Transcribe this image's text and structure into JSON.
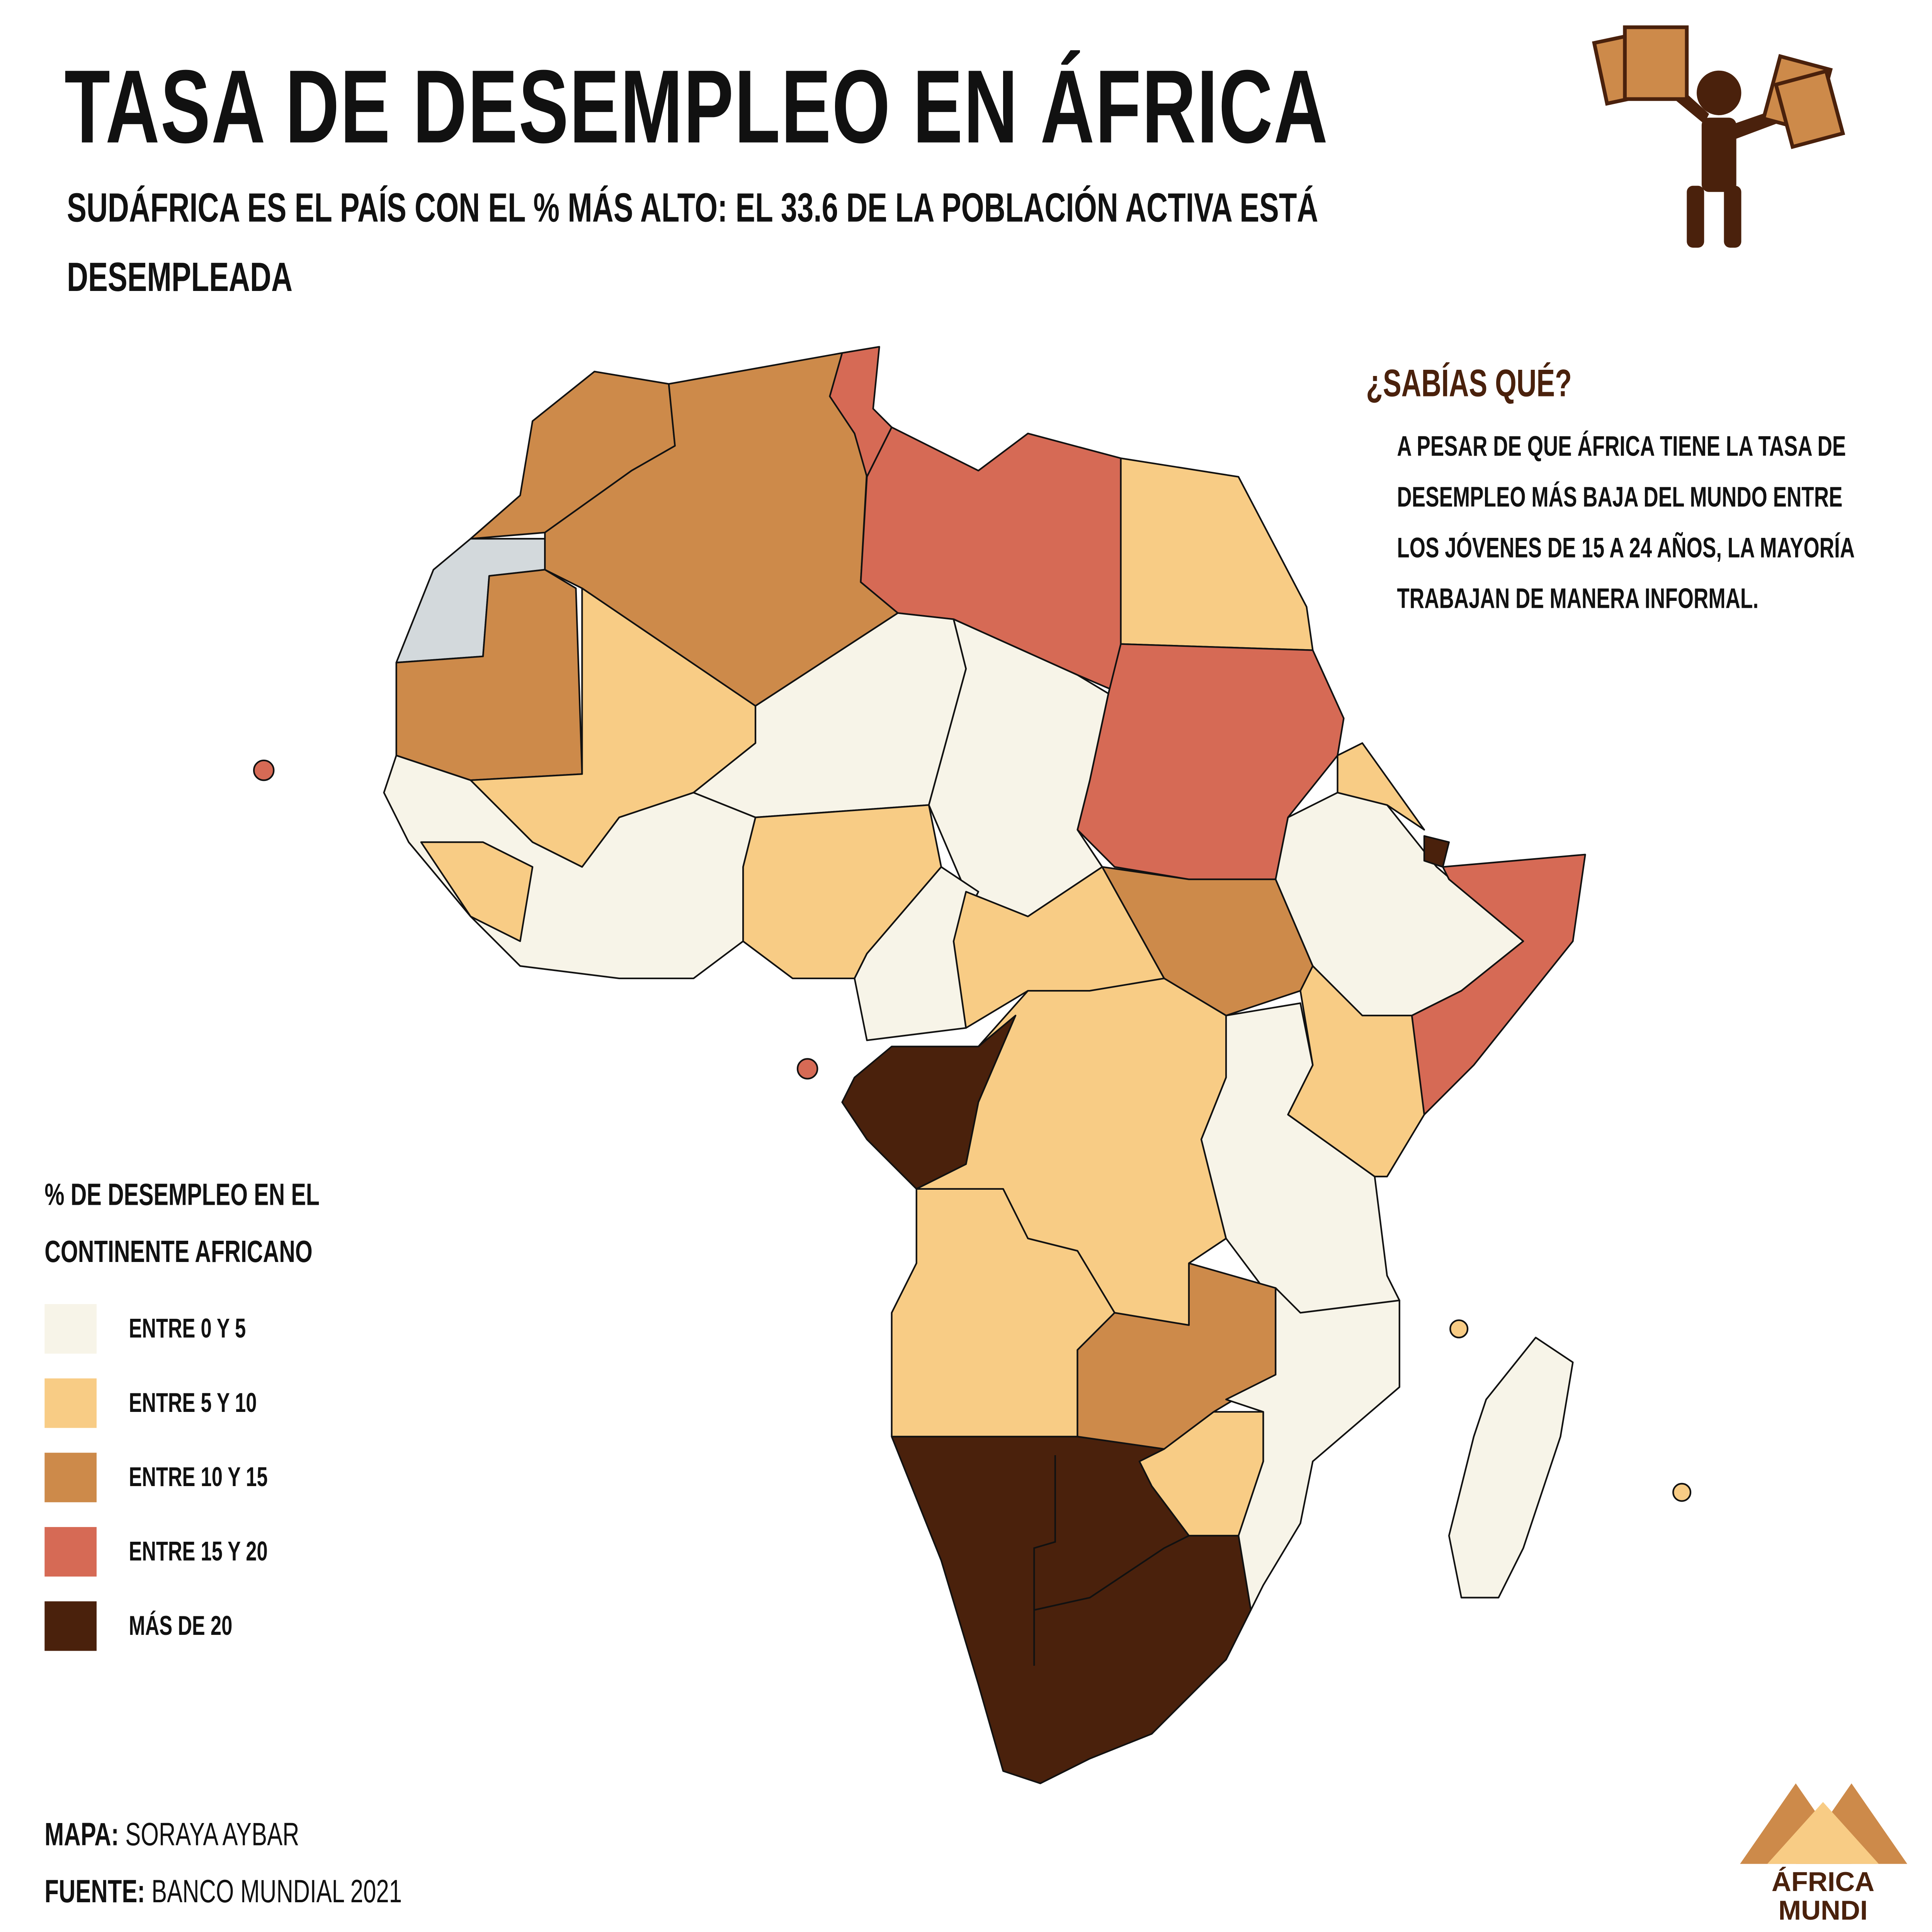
{
  "header": {
    "title": "TASA DE DESEMPLEO EN ÁFRICA",
    "subtitle": "SUDÁFRICA ES EL PAÍS CON EL % MÁS ALTO: EL 33.6 DE LA POBLACIÓN ACTIVA ESTÁ DESEMPLEADA"
  },
  "did_you_know": {
    "title": "¿SABÍAS QUÉ?",
    "text": "A PESAR DE QUE ÁFRICA TIENE LA TASA DE DESEMPLEO MÁS BAJA DEL MUNDO ENTRE LOS JÓVENES DE 15 A 24 AÑOS, LA MAYORÍA TRABAJAN DE MANERA INFORMAL."
  },
  "legend": {
    "title": "% DE DESEMPLEO EN EL CONTINENTE AFRICANO",
    "items": [
      {
        "label": "ENTRE 0 Y 5",
        "color": "#f7f4e8"
      },
      {
        "label": "ENTRE 5 Y 10",
        "color": "#f8cc85"
      },
      {
        "label": "ENTRE 10 Y 15",
        "color": "#cd8a4a"
      },
      {
        "label": "ENTRE 15 Y 20",
        "color": "#d66a55"
      },
      {
        "label": "MÁS DE 20",
        "color": "#4a210c"
      }
    ]
  },
  "credits": [
    {
      "label": "MAPA:",
      "value": "SORAYA AYBAR"
    },
    {
      "label": "FUENTE:",
      "value": "BANCO MUNDIAL 2021"
    }
  ],
  "logo": {
    "line1": "ÁFRICA",
    "line2": "MUNDI"
  }
}
